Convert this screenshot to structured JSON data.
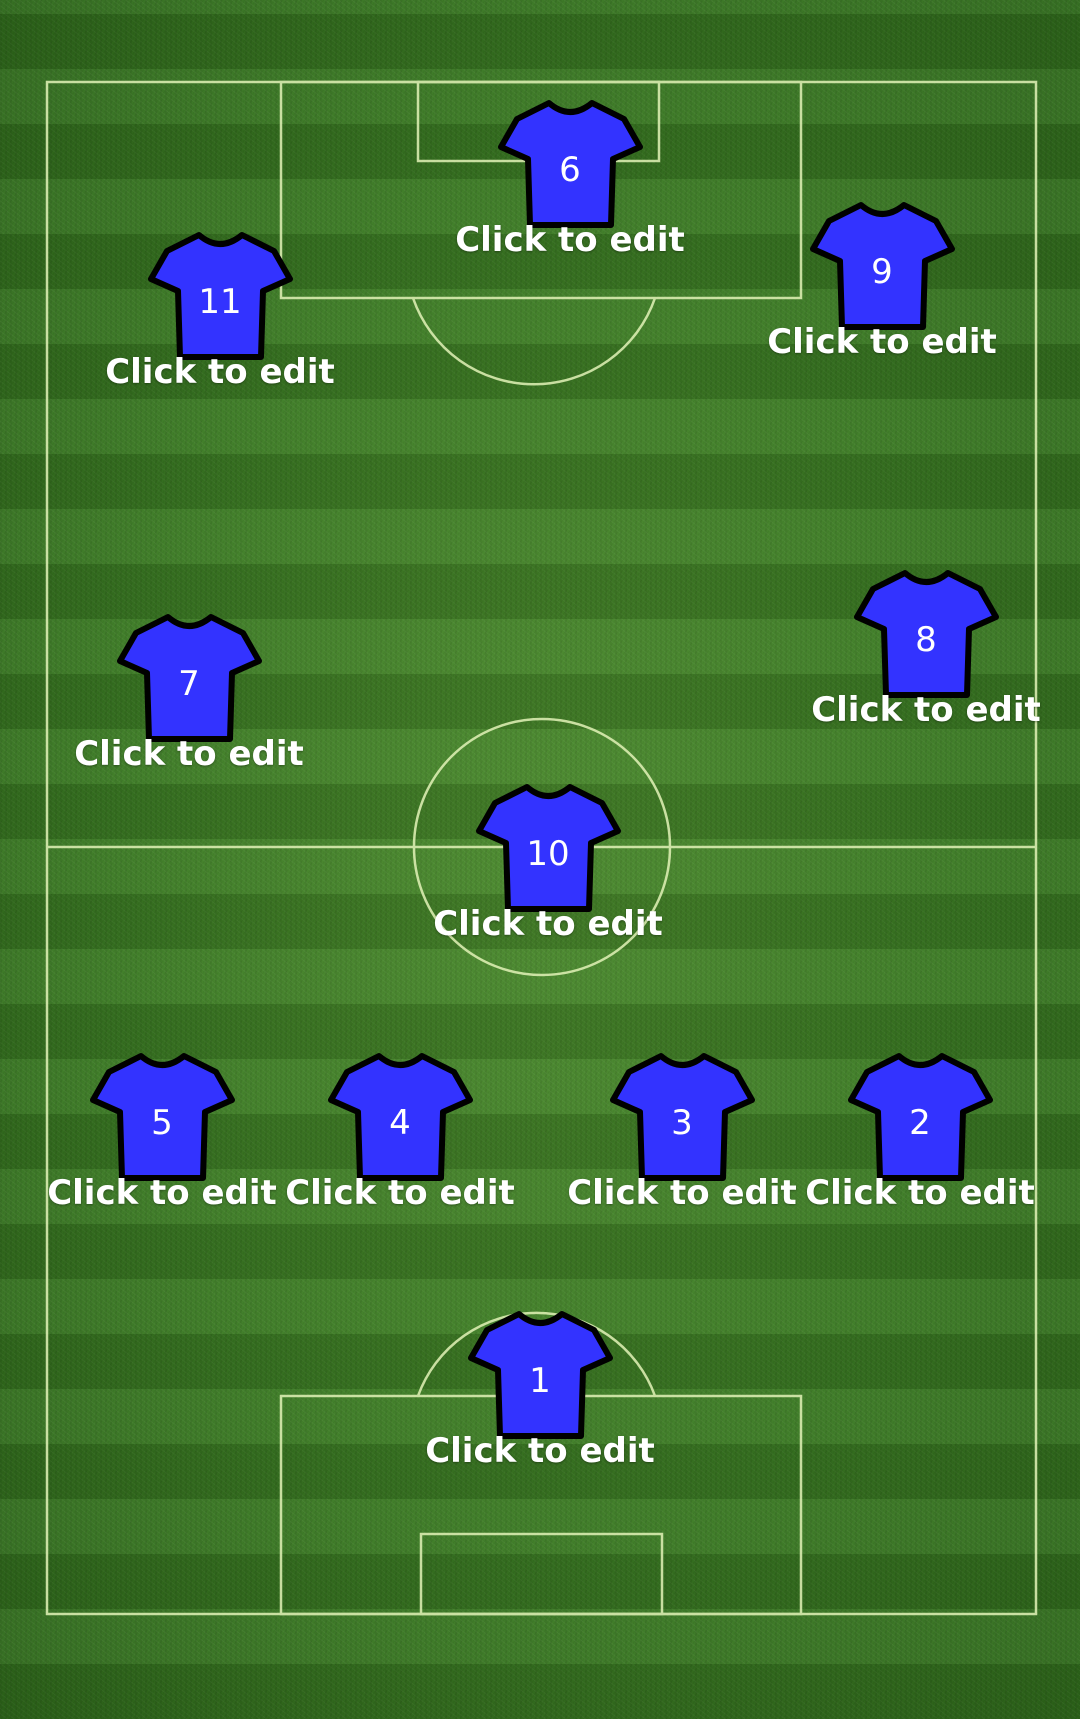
{
  "pitch": {
    "line_color": "#e3f3b8",
    "grass_color": "#3a7a22"
  },
  "team": {
    "shirt_color": "#3333ff",
    "outline_color": "#000000"
  },
  "players": [
    {
      "number": "1",
      "label": "Click to edit"
    },
    {
      "number": "2",
      "label": "Click to edit"
    },
    {
      "number": "3",
      "label": "Click to edit"
    },
    {
      "number": "4",
      "label": "Click to edit"
    },
    {
      "number": "5",
      "label": "Click to edit"
    },
    {
      "number": "6",
      "label": "Click to edit"
    },
    {
      "number": "7",
      "label": "Click to edit"
    },
    {
      "number": "8",
      "label": "Click to edit"
    },
    {
      "number": "9",
      "label": "Click to edit"
    },
    {
      "number": "10",
      "label": "Click to edit"
    },
    {
      "number": "11",
      "label": "Click to edit"
    }
  ]
}
